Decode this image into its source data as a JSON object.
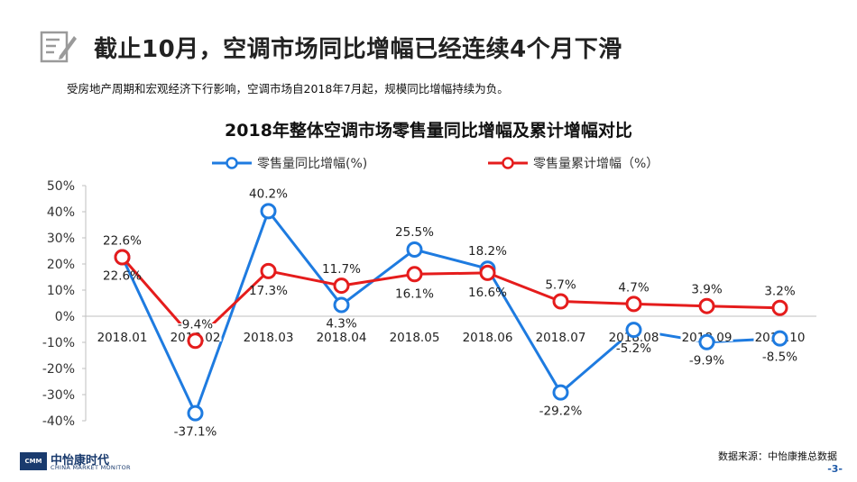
{
  "page": {
    "title": "截止10月，空调市场同比增幅已经连续4个月下滑",
    "subtitle": "受房地产周期和宏观经济下行影响，空调市场自2018年7月起，规模同比增幅持续为负。",
    "source": "数据来源：中怡康推总数据",
    "page_number": "-3-",
    "header_icon": "edit-document-icon",
    "logo": {
      "brand": "中怡康时代",
      "sub": "CHINA MARKET MONITOR",
      "mark": "CMM"
    }
  },
  "chart_data": {
    "type": "line",
    "title": "2018年整体空调市场零售量同比增幅及累计增幅对比",
    "xlabel": "",
    "ylabel": "",
    "categories": [
      "2018.01",
      "2018.02",
      "2018.03",
      "2018.04",
      "2018.05",
      "2018.06",
      "2018.07",
      "2018.08",
      "2018.09",
      "2018.10"
    ],
    "ylim": [
      -40,
      50
    ],
    "yticks": [
      50,
      40,
      30,
      20,
      10,
      0,
      -10,
      -20,
      -30,
      -40
    ],
    "ytick_labels": [
      "50%",
      "40%",
      "30%",
      "20%",
      "10%",
      "0%",
      "-10%",
      "-20%",
      "-30%",
      "-40%"
    ],
    "grid": false,
    "legend": "top",
    "series": [
      {
        "name": "零售量同比增幅(%)",
        "color": "#1e7be0",
        "values": [
          22.6,
          -37.1,
          40.2,
          4.3,
          25.5,
          18.2,
          -29.2,
          -5.2,
          -9.9,
          -8.5
        ],
        "labels": [
          "22.6%",
          "-37.1%",
          "40.2%",
          "4.3%",
          "25.5%",
          "18.2%",
          "-29.2%",
          "-5.2%",
          "-9.9%",
          "-8.5%"
        ]
      },
      {
        "name": "零售量累计增幅（%）",
        "color": "#e51c1c",
        "values": [
          22.6,
          -9.4,
          17.3,
          11.7,
          16.1,
          16.6,
          5.7,
          4.7,
          3.9,
          3.2
        ],
        "labels": [
          "22.6%",
          "-9.4%",
          "17.3%",
          "11.7%",
          "16.1%",
          "16.6%",
          "5.7%",
          "4.7%",
          "3.9%",
          "3.2%"
        ]
      }
    ]
  },
  "colors": {
    "blue": "#1e7be0",
    "red": "#e51c1c",
    "axis": "#bfbfbf",
    "brand": "#1a3b6e"
  }
}
